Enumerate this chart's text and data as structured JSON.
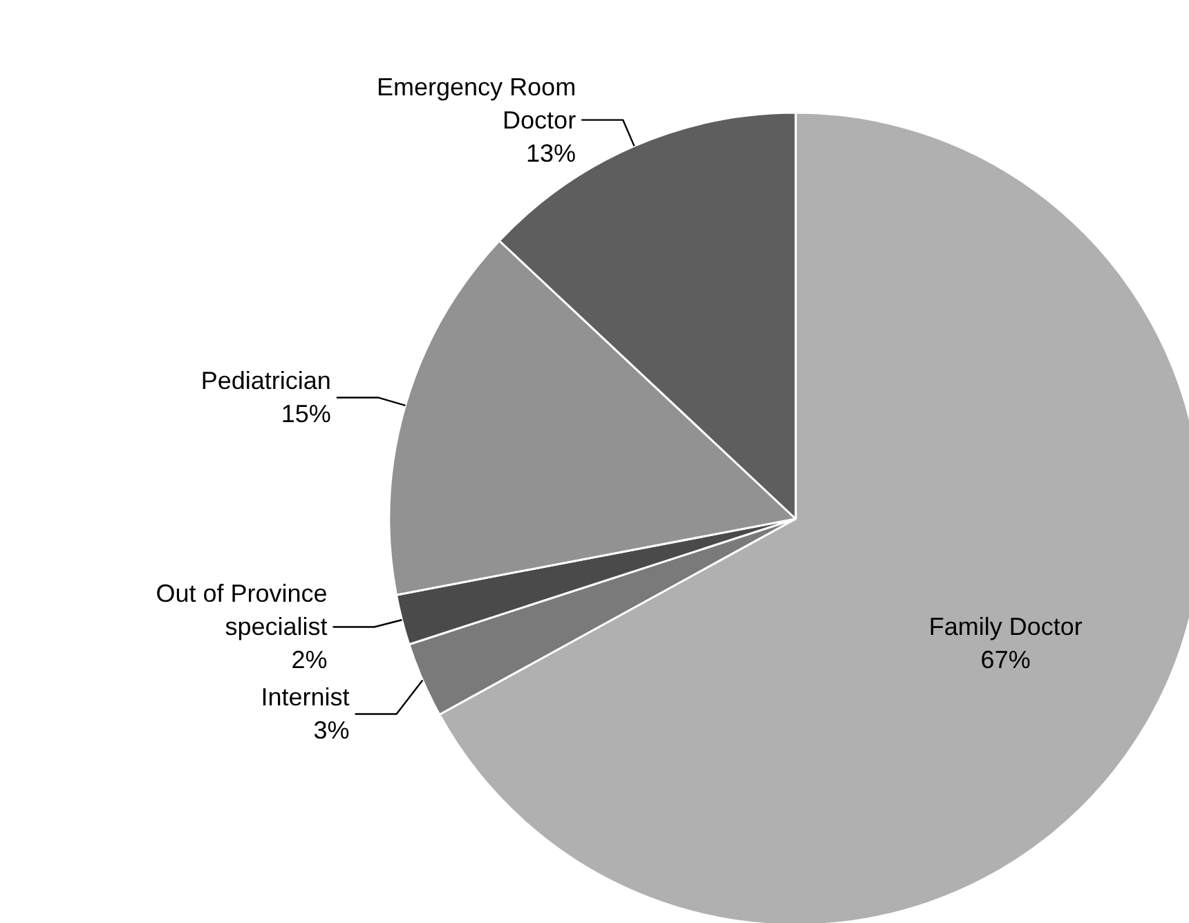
{
  "chart_data": {
    "type": "pie",
    "categories": [
      "Family Doctor",
      "Internist",
      "Out of Province specialist",
      "Pediatrician",
      "Emergency Room Doctor"
    ],
    "values": [
      67,
      3,
      2,
      15,
      13
    ],
    "value_labels": [
      "67%",
      "3%",
      "2%",
      "15%",
      "13%"
    ],
    "colors": [
      "#b0b0b0",
      "#7a7a7a",
      "#4a4a4a",
      "#929292",
      "#5e5e5e"
    ],
    "legend": false
  }
}
